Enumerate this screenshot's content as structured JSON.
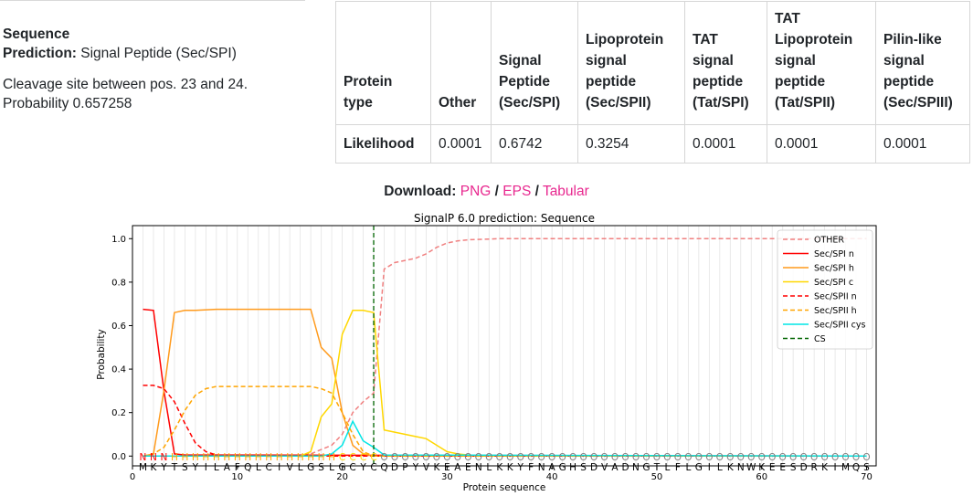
{
  "summary": {
    "title": "Sequence",
    "prediction_label": "Prediction:",
    "prediction_value": "Signal Peptide (Sec/SPI)",
    "cleavage_text": "Cleavage site between pos. 23 and 24.",
    "probability_text": "Probability 0.657258"
  },
  "table": {
    "headers": [
      "Protein type",
      "Other",
      "Signal Peptide (Sec/SPI)",
      "Lipoprotein signal peptide (Sec/SPII)",
      "TAT signal peptide (Tat/SPI)",
      "TAT Lipoprotein signal peptide (Tat/SPII)",
      "Pilin-like signal peptide (Sec/SPIII)"
    ],
    "row_label": "Likelihood",
    "values": [
      "0.0001",
      "0.6742",
      "0.3254",
      "0.0001",
      "0.0001",
      "0.0001"
    ]
  },
  "download": {
    "label": "Download:",
    "links": [
      "PNG",
      "EPS",
      "Tabular"
    ],
    "link_color": "#e8288f"
  },
  "chart_data": {
    "type": "line",
    "title": "SignalP 6.0 prediction: Sequence",
    "xlabel": "Protein sequence",
    "ylabel": "Probability",
    "xlim": [
      0,
      71
    ],
    "ylim": [
      -0.045,
      1.06
    ],
    "xticks": [
      0,
      10,
      20,
      30,
      40,
      50,
      60,
      70
    ],
    "yticks": [
      0.0,
      0.2,
      0.4,
      0.6,
      0.8,
      1.0
    ],
    "grid": "vertical",
    "legend_position": "top-right",
    "sequence": [
      "M",
      "K",
      "Y",
      "T",
      "S",
      "Y",
      "I",
      "L",
      "A",
      "F",
      "Q",
      "L",
      "C",
      "I",
      "V",
      "L",
      "G",
      "S",
      "L",
      "G",
      "C",
      "Y",
      "C",
      "Q",
      "D",
      "P",
      "Y",
      "V",
      "K",
      "E",
      "A",
      "E",
      "N",
      "L",
      "K",
      "K",
      "Y",
      "F",
      "N",
      "A",
      "G",
      "H",
      "S",
      "D",
      "V",
      "A",
      "D",
      "N",
      "G",
      "T",
      "L",
      "F",
      "L",
      "G",
      "I",
      "L",
      "K",
      "N",
      "W",
      "K",
      "E",
      "E",
      "S",
      "D",
      "R",
      "K",
      "I",
      "M",
      "Q",
      "S"
    ],
    "region_labels": [
      "N",
      "N",
      "N",
      "H",
      "H",
      "H",
      "H",
      "H",
      "H",
      "H",
      "H",
      "H",
      "H",
      "H",
      "H",
      "H",
      "H",
      "H",
      "H",
      "C",
      "C",
      "C",
      "C",
      "O",
      "O",
      "O",
      "O",
      "O",
      "O",
      "O",
      "O",
      "O",
      "O",
      "O",
      "O",
      "O",
      "O",
      "O",
      "O",
      "O",
      "O",
      "O",
      "O",
      "O",
      "O",
      "O",
      "O",
      "O",
      "O",
      "O",
      "O",
      "O",
      "O",
      "O",
      "O",
      "O",
      "O",
      "O",
      "O",
      "O",
      "O",
      "O",
      "O",
      "O",
      "O",
      "O",
      "O",
      "O",
      "O",
      "O"
    ],
    "region_colors": {
      "N": "#ff0000",
      "H": "#ffa500",
      "C": "#ffd700",
      "O": "#808080"
    },
    "cs_position": 23,
    "series": [
      {
        "name": "OTHER",
        "color": "#f08080",
        "dash": "dashed",
        "x": [
          1,
          15,
          17,
          19,
          20,
          21,
          22,
          23,
          24,
          25,
          26,
          27,
          28,
          29,
          30,
          31,
          32,
          35,
          70
        ],
        "y": [
          0,
          0,
          0.01,
          0.05,
          0.1,
          0.2,
          0.25,
          0.29,
          0.86,
          0.89,
          0.9,
          0.91,
          0.93,
          0.96,
          0.98,
          0.99,
          0.995,
          1.0,
          1.0
        ]
      },
      {
        "name": "Sec/SPI n",
        "color": "#ff0000",
        "dash": "solid",
        "x": [
          1,
          2,
          3,
          4,
          5,
          70
        ],
        "y": [
          0.675,
          0.67,
          0.3,
          0.01,
          0.005,
          0.0
        ]
      },
      {
        "name": "Sec/SPI h",
        "color": "#ff9a1c",
        "dash": "solid",
        "x": [
          1,
          2,
          3,
          4,
          5,
          6,
          8,
          16,
          17,
          18,
          19,
          20,
          21,
          22,
          23,
          70
        ],
        "y": [
          0,
          0.01,
          0.3,
          0.66,
          0.67,
          0.67,
          0.675,
          0.675,
          0.675,
          0.5,
          0.45,
          0.2,
          0.05,
          0.01,
          0.0,
          0.0
        ]
      },
      {
        "name": "Sec/SPI c",
        "color": "#ffd700",
        "dash": "solid",
        "x": [
          1,
          16,
          17,
          18,
          19,
          20,
          21,
          22,
          23,
          24,
          25,
          26,
          27,
          28,
          29,
          30,
          31,
          33,
          70
        ],
        "y": [
          0,
          0,
          0.02,
          0.18,
          0.24,
          0.56,
          0.67,
          0.67,
          0.66,
          0.12,
          0.11,
          0.1,
          0.09,
          0.08,
          0.05,
          0.02,
          0.01,
          0.0,
          0.0
        ]
      },
      {
        "name": "Sec/SPII n",
        "color": "#ff0000",
        "dash": "dashed",
        "x": [
          1,
          2,
          3,
          4,
          5,
          6,
          7,
          8,
          9,
          70
        ],
        "y": [
          0.325,
          0.325,
          0.31,
          0.25,
          0.15,
          0.06,
          0.02,
          0.005,
          0.0,
          0.0
        ]
      },
      {
        "name": "Sec/SPII h",
        "color": "#ffa500",
        "dash": "dashed",
        "x": [
          1,
          2,
          3,
          4,
          5,
          6,
          7,
          8,
          16,
          17,
          18,
          19,
          20,
          21,
          22,
          23,
          70
        ],
        "y": [
          0,
          0.01,
          0.04,
          0.12,
          0.21,
          0.28,
          0.31,
          0.32,
          0.32,
          0.32,
          0.31,
          0.29,
          0.2,
          0.1,
          0.02,
          0.0,
          0.0
        ]
      },
      {
        "name": "Sec/SPII cys",
        "color": "#00e5e5",
        "dash": "solid",
        "x": [
          1,
          18,
          19,
          20,
          21,
          22,
          23,
          24,
          70
        ],
        "y": [
          0,
          0,
          0.01,
          0.05,
          0.16,
          0.07,
          0.04,
          0.005,
          0.0
        ]
      }
    ],
    "cs_legend": {
      "name": "CS",
      "color": "#006400",
      "dash": "dashed"
    }
  }
}
